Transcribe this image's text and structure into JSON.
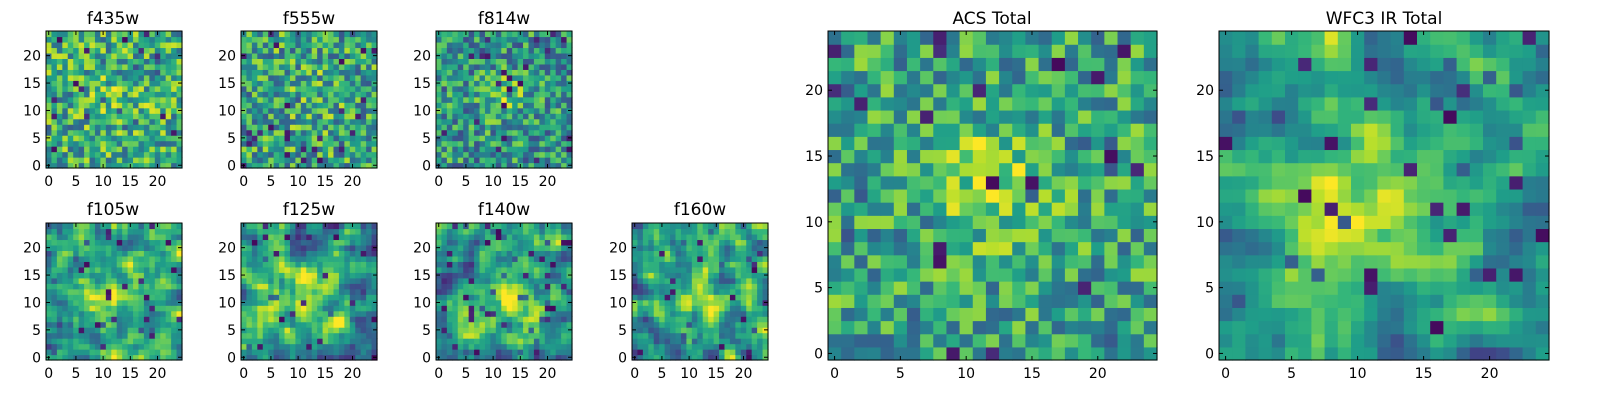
{
  "colormap": "viridis",
  "chart_data": [
    {
      "type": "heatmap",
      "title": "f435w",
      "grid": [
        25,
        25
      ],
      "xticks": [
        0,
        5,
        10,
        15,
        20
      ],
      "yticks": [
        0,
        5,
        10,
        15,
        20
      ],
      "xlim": [
        -0.5,
        24.5
      ],
      "ylim": [
        -0.5,
        24.5
      ],
      "center": [
        13,
        13
      ],
      "blob": 0.1,
      "sigma": 4,
      "noise": 0.62,
      "smooth": 0,
      "base": 0.62,
      "seed": 11
    },
    {
      "type": "heatmap",
      "title": "f555w",
      "grid": [
        25,
        25
      ],
      "xticks": [
        0,
        5,
        10,
        15,
        20
      ],
      "yticks": [
        0,
        5,
        10,
        15,
        20
      ],
      "xlim": [
        -0.5,
        24.5
      ],
      "ylim": [
        -0.5,
        24.5
      ],
      "center": [
        12,
        13
      ],
      "blob": 0.08,
      "sigma": 4,
      "noise": 0.64,
      "smooth": 0,
      "base": 0.58,
      "seed": 23
    },
    {
      "type": "heatmap",
      "title": "f814w",
      "grid": [
        25,
        25
      ],
      "xticks": [
        0,
        5,
        10,
        15,
        20
      ],
      "yticks": [
        0,
        5,
        10,
        15,
        20
      ],
      "xlim": [
        -0.5,
        24.5
      ],
      "ylim": [
        -0.5,
        24.5
      ],
      "center": [
        12,
        13
      ],
      "blob": 0.22,
      "sigma": 3,
      "noise": 0.6,
      "smooth": 0,
      "base": 0.52,
      "seed": 37
    },
    {
      "type": "heatmap",
      "title": "f105w",
      "grid": [
        25,
        25
      ],
      "xticks": [
        0,
        5,
        10,
        15,
        20
      ],
      "yticks": [
        0,
        5,
        10,
        15,
        20
      ],
      "xlim": [
        -0.5,
        24.5
      ],
      "ylim": [
        -0.5,
        24.5
      ],
      "center": [
        12,
        11
      ],
      "blob": 0.3,
      "sigma": 4,
      "noise": 0.7,
      "smooth": 1,
      "base": 0.56,
      "seed": 41
    },
    {
      "type": "heatmap",
      "title": "f125w",
      "grid": [
        25,
        25
      ],
      "xticks": [
        0,
        5,
        10,
        15,
        20
      ],
      "yticks": [
        0,
        5,
        10,
        15,
        20
      ],
      "xlim": [
        -0.5,
        24.5
      ],
      "ylim": [
        -0.5,
        24.5
      ],
      "center": [
        12,
        11
      ],
      "blob": 0.28,
      "sigma": 4,
      "noise": 0.72,
      "smooth": 1,
      "base": 0.55,
      "seed": 53
    },
    {
      "type": "heatmap",
      "title": "f140w",
      "grid": [
        25,
        25
      ],
      "xticks": [
        0,
        5,
        10,
        15,
        20
      ],
      "yticks": [
        0,
        5,
        10,
        15,
        20
      ],
      "xlim": [
        -0.5,
        24.5
      ],
      "ylim": [
        -0.5,
        24.5
      ],
      "center": [
        13,
        11
      ],
      "blob": 0.3,
      "sigma": 4,
      "noise": 0.72,
      "smooth": 1,
      "base": 0.55,
      "seed": 67
    },
    {
      "type": "heatmap",
      "title": "f160w",
      "grid": [
        25,
        25
      ],
      "xticks": [
        0,
        5,
        10,
        15,
        20
      ],
      "yticks": [
        0,
        5,
        10,
        15,
        20
      ],
      "xlim": [
        -0.5,
        24.5
      ],
      "ylim": [
        -0.5,
        24.5
      ],
      "center": [
        12,
        11
      ],
      "blob": 0.3,
      "sigma": 4,
      "noise": 0.74,
      "smooth": 1,
      "base": 0.55,
      "seed": 79
    },
    {
      "type": "heatmap",
      "title": "ACS Total",
      "grid": [
        25,
        25
      ],
      "xticks": [
        0,
        5,
        10,
        15,
        20
      ],
      "yticks": [
        0,
        5,
        10,
        15,
        20
      ],
      "xlim": [
        -0.5,
        24.5
      ],
      "ylim": [
        -0.5,
        24.5
      ],
      "center": [
        12,
        13
      ],
      "blob": 0.28,
      "sigma": 3,
      "noise": 0.55,
      "smooth": 0,
      "base": 0.58,
      "seed": 97
    },
    {
      "type": "heatmap",
      "title": "WFC3 IR Total",
      "grid": [
        25,
        25
      ],
      "xticks": [
        0,
        5,
        10,
        15,
        20
      ],
      "yticks": [
        0,
        5,
        10,
        15,
        20
      ],
      "xlim": [
        -0.5,
        24.5
      ],
      "ylim": [
        -0.5,
        24.5
      ],
      "center": [
        12,
        11
      ],
      "blob": 0.4,
      "sigma": 4,
      "noise": 0.55,
      "smooth": 1,
      "base": 0.55,
      "seed": 101
    }
  ]
}
